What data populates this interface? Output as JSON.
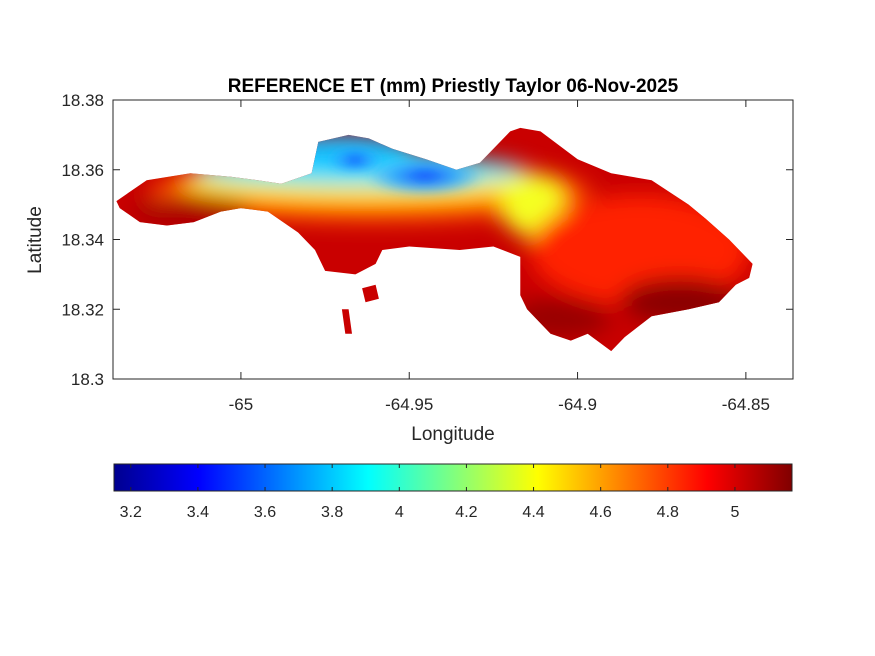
{
  "chart_data": {
    "type": "heatmap",
    "title": "REFERENCE ET (mm) Priestly Taylor 06-Nov-2025",
    "xlabel": "Longitude",
    "ylabel": "Latitude",
    "xlim": [
      -65.038,
      -64.836
    ],
    "ylim": [
      18.3,
      18.38
    ],
    "xticks": [
      -65,
      -64.95,
      -64.9,
      -64.85
    ],
    "xtick_labels": [
      "-65",
      "-64.95",
      "-64.9",
      "-64.85"
    ],
    "yticks": [
      18.3,
      18.32,
      18.34,
      18.36,
      18.38
    ],
    "ytick_labels": [
      "18.3",
      "18.32",
      "18.34",
      "18.36",
      "18.38"
    ],
    "grid": false,
    "colormap": "jet",
    "colorbar": {
      "location": "bottom",
      "min": 3.15,
      "max": 5.17,
      "ticks": [
        3.2,
        3.4,
        3.6,
        3.8,
        4,
        4.2,
        4.4,
        4.6,
        4.8,
        5
      ],
      "tick_labels": [
        "3.2",
        "3.4",
        "3.6",
        "3.8",
        "4",
        "4.2",
        "4.4",
        "4.6",
        "4.8",
        "5"
      ]
    },
    "regions": [
      {
        "name": "main-island",
        "value_range": [
          3.3,
          5.15
        ],
        "boundary": [
          [
            -65.037,
            18.351
          ],
          [
            -65.028,
            18.357
          ],
          [
            -65.015,
            18.359
          ],
          [
            -65.003,
            18.358
          ],
          [
            -64.995,
            18.357
          ],
          [
            -64.988,
            18.356
          ],
          [
            -64.979,
            18.359
          ],
          [
            -64.977,
            18.368
          ],
          [
            -64.968,
            18.37
          ],
          [
            -64.962,
            18.369
          ],
          [
            -64.955,
            18.366
          ],
          [
            -64.945,
            18.363
          ],
          [
            -64.936,
            18.36
          ],
          [
            -64.929,
            18.362
          ],
          [
            -64.92,
            18.371
          ],
          [
            -64.917,
            18.372
          ],
          [
            -64.911,
            18.371
          ],
          [
            -64.9,
            18.363
          ],
          [
            -64.89,
            18.359
          ],
          [
            -64.878,
            18.357
          ],
          [
            -64.867,
            18.35
          ],
          [
            -64.862,
            18.346
          ],
          [
            -64.855,
            18.34
          ],
          [
            -64.848,
            18.333
          ],
          [
            -64.849,
            18.329
          ],
          [
            -64.853,
            18.327
          ],
          [
            -64.858,
            18.322
          ],
          [
            -64.867,
            18.32
          ],
          [
            -64.878,
            18.318
          ],
          [
            -64.886,
            18.312
          ],
          [
            -64.89,
            18.308
          ],
          [
            -64.897,
            18.313
          ],
          [
            -64.902,
            18.311
          ],
          [
            -64.908,
            18.313
          ],
          [
            -64.915,
            18.32
          ],
          [
            -64.917,
            18.324
          ],
          [
            -64.917,
            18.335
          ],
          [
            -64.925,
            18.338
          ],
          [
            -64.935,
            18.337
          ],
          [
            -64.95,
            18.338
          ],
          [
            -64.958,
            18.337
          ],
          [
            -64.96,
            18.333
          ],
          [
            -64.966,
            18.33
          ],
          [
            -64.975,
            18.331
          ],
          [
            -64.978,
            18.337
          ],
          [
            -64.983,
            18.342
          ],
          [
            -64.992,
            18.348
          ],
          [
            -65.0,
            18.349
          ],
          [
            -65.006,
            18.348
          ],
          [
            -65.014,
            18.345
          ],
          [
            -65.022,
            18.344
          ],
          [
            -65.03,
            18.345
          ],
          [
            -65.036,
            18.349
          ]
        ]
      },
      {
        "name": "islet-1",
        "value_range": [
          4.8,
          5.0
        ],
        "boundary": [
          [
            -64.964,
            18.326
          ],
          [
            -64.96,
            18.327
          ],
          [
            -64.959,
            18.323
          ],
          [
            -64.963,
            18.322
          ]
        ]
      },
      {
        "name": "islet-2",
        "value_range": [
          4.9,
          5.1
        ],
        "boundary": [
          [
            -64.97,
            18.32
          ],
          [
            -64.968,
            18.32
          ],
          [
            -64.967,
            18.313
          ],
          [
            -64.969,
            18.313
          ]
        ]
      }
    ]
  }
}
